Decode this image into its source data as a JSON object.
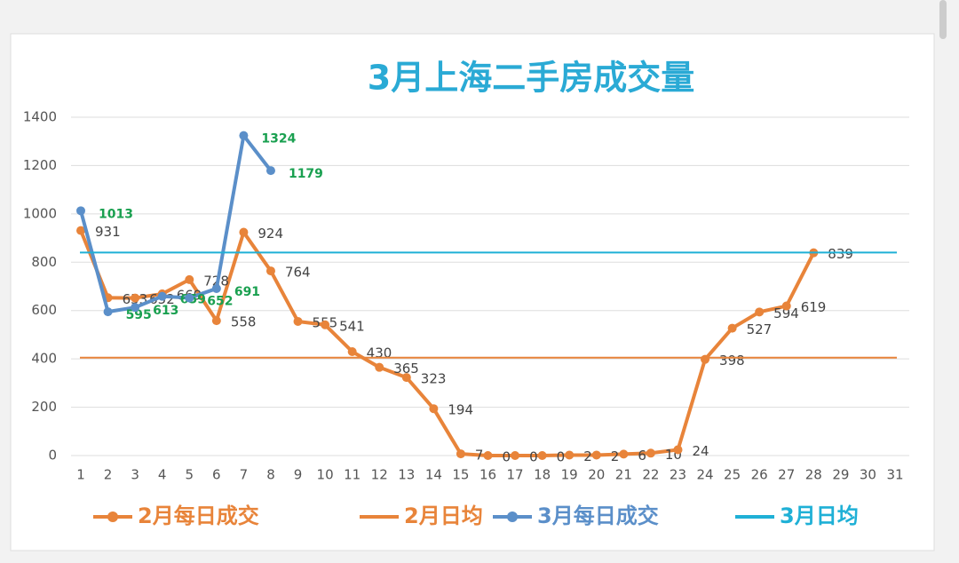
{
  "chart_data": {
    "type": "line",
    "title": "3月上海二手房成交量",
    "categories": [
      "1",
      "2",
      "3",
      "4",
      "5",
      "6",
      "7",
      "8",
      "9",
      "10",
      "11",
      "12",
      "13",
      "14",
      "15",
      "16",
      "17",
      "18",
      "19",
      "20",
      "21",
      "22",
      "23",
      "24",
      "25",
      "26",
      "27",
      "28",
      "29",
      "30",
      "31"
    ],
    "ylim": [
      0,
      1400
    ],
    "yticks": [
      0,
      200,
      400,
      600,
      800,
      1000,
      1200,
      1400
    ],
    "grid": true,
    "series": [
      {
        "name": "2月每日成交",
        "color": "#e8843a",
        "values": [
          931,
          653,
          652,
          669,
          728,
          558,
          924,
          764,
          555,
          541,
          430,
          365,
          323,
          194,
          7,
          0,
          0,
          0,
          2,
          2,
          6,
          10,
          24,
          398,
          527,
          594,
          619,
          839,
          null,
          null,
          null
        ]
      },
      {
        "name": "2月日均",
        "color": "#e8843a",
        "average": 405
      },
      {
        "name": "3月每日成交",
        "color": "#5b8fc9",
        "values": [
          1013,
          595,
          613,
          659,
          652,
          691,
          1324,
          1179,
          null,
          null,
          null,
          null,
          null,
          null,
          null,
          null,
          null,
          null,
          null,
          null,
          null,
          null,
          null,
          null,
          null,
          null,
          null,
          null,
          null,
          null,
          null
        ]
      },
      {
        "name": "3月日均",
        "color": "#1fb0d6",
        "average": 840
      }
    ]
  }
}
